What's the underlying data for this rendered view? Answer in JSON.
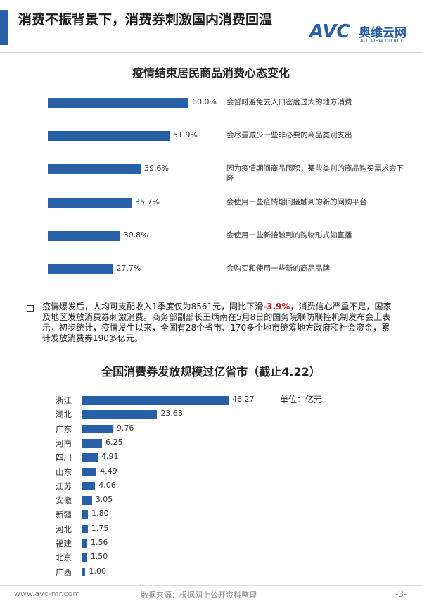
{
  "header": {
    "title": "消费不振背景下，消费券刺激国内消费回温",
    "logo": "AVC",
    "logo_cn": "奥维云网",
    "logo_en": "ALL VIEW CLOUD"
  },
  "chart_data": [
    {
      "type": "bar",
      "orientation": "horizontal",
      "title": "疫情结束居民商品消费心态变化",
      "categories": [
        "会暂时避免去人口密度过大的地方消费",
        "会尽量减少一些非必要的商品类别支出",
        "因为疫情期间商品囤积，某些类别的商品购买需求会下降",
        "会使用一些疫情期间接触到的新的网购平台",
        "会使用一些新接触到的购物形式如直播",
        "会购买和使用一些新的商品品牌"
      ],
      "values": [
        60.0,
        51.9,
        39.6,
        35.7,
        30.8,
        27.7
      ],
      "value_labels": [
        "60.0%",
        "51.9%",
        "39.6%",
        "35.7%",
        "30.8%",
        "27.7%"
      ],
      "color": "#2860a8"
    },
    {
      "type": "bar",
      "orientation": "horizontal",
      "title": "全国消费券发放规模过亿省市（截止4.22）",
      "annotation": "单位：亿元",
      "categories": [
        "浙江",
        "湖北",
        "广东",
        "河南",
        "四川",
        "山东",
        "江苏",
        "安徽",
        "新疆",
        "河北",
        "福建",
        "北京",
        "广西"
      ],
      "values": [
        46.27,
        23.68,
        9.76,
        6.25,
        4.91,
        4.49,
        4.06,
        3.05,
        1.8,
        1.75,
        1.56,
        1.5,
        1.0
      ],
      "value_labels": [
        "46.27",
        "23.68",
        "9.76",
        "6.25",
        "4.91",
        "4.49",
        "4.06",
        "3.05",
        "1.80",
        "1.75",
        "1.56",
        "1.50",
        "1.00"
      ],
      "color": "#2860a8"
    }
  ],
  "paragraph": [
    "疫情爆发后，人均可支配收入1季度仅为8561元，同比下滑",
    "-3.9%",
    "，消费信心严重不足，国家及地区发放消费券刺激消费。商务部副部长王炳南在5月8日的国务院联防联控机制发布会上表示，初步统计，疫情发生以来，全国有28个省市、170多个地市统筹地方政府和社会资金，累计发放消费券190多亿元。"
  ],
  "footer": {
    "website": "www.avc-mr.com",
    "source": "数据来源：根据网上公开资料整理",
    "page": "-3-"
  }
}
